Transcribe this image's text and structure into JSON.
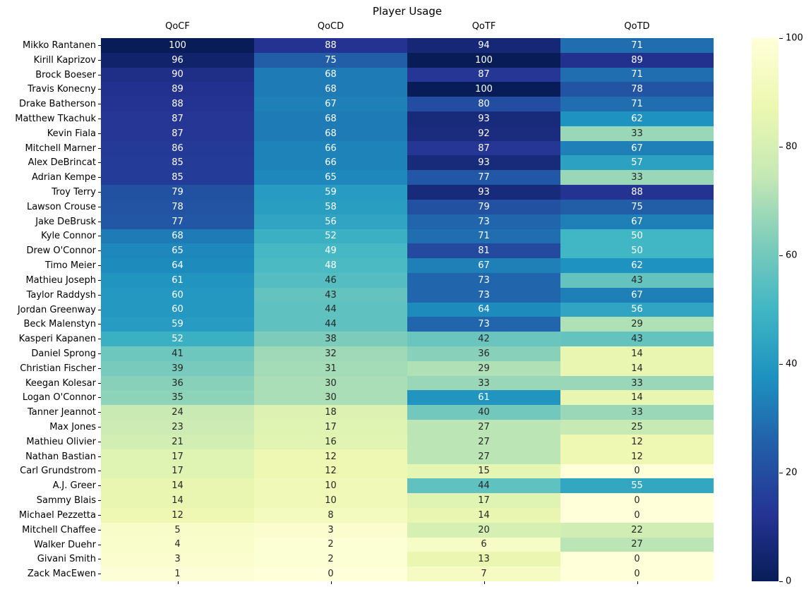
{
  "chart_data": {
    "type": "heatmap",
    "title": "Player Usage",
    "columns": [
      "QoCF",
      "QoCD",
      "QoTF",
      "QoTD"
    ],
    "rows": [
      {
        "name": "Mikko Rantanen",
        "values": [
          100,
          88,
          94,
          71
        ]
      },
      {
        "name": "Kirill Kaprizov",
        "values": [
          96,
          75,
          100,
          89
        ]
      },
      {
        "name": "Brock Boeser",
        "values": [
          90,
          68,
          87,
          71
        ]
      },
      {
        "name": "Travis Konecny",
        "values": [
          89,
          68,
          100,
          78
        ]
      },
      {
        "name": "Drake Batherson",
        "values": [
          88,
          67,
          80,
          71
        ]
      },
      {
        "name": "Matthew Tkachuk",
        "values": [
          87,
          68,
          93,
          62
        ]
      },
      {
        "name": "Kevin Fiala",
        "values": [
          87,
          68,
          92,
          33
        ]
      },
      {
        "name": "Mitchell Marner",
        "values": [
          86,
          66,
          87,
          67
        ]
      },
      {
        "name": "Alex DeBrincat",
        "values": [
          85,
          66,
          93,
          57
        ]
      },
      {
        "name": "Adrian Kempe",
        "values": [
          85,
          65,
          77,
          33
        ]
      },
      {
        "name": "Troy Terry",
        "values": [
          79,
          59,
          93,
          88
        ]
      },
      {
        "name": "Lawson Crouse",
        "values": [
          78,
          58,
          79,
          75
        ]
      },
      {
        "name": "Jake DeBrusk",
        "values": [
          77,
          56,
          73,
          67
        ]
      },
      {
        "name": "Kyle Connor",
        "values": [
          68,
          52,
          71,
          50
        ]
      },
      {
        "name": "Drew O'Connor",
        "values": [
          65,
          49,
          81,
          50
        ]
      },
      {
        "name": "Timo Meier",
        "values": [
          64,
          48,
          67,
          62
        ]
      },
      {
        "name": "Mathieu Joseph",
        "values": [
          61,
          46,
          73,
          43
        ]
      },
      {
        "name": "Taylor Raddysh",
        "values": [
          60,
          43,
          73,
          67
        ]
      },
      {
        "name": "Jordan Greenway",
        "values": [
          60,
          44,
          64,
          56
        ]
      },
      {
        "name": "Beck Malenstyn",
        "values": [
          59,
          44,
          73,
          29
        ]
      },
      {
        "name": "Kasperi Kapanen",
        "values": [
          52,
          38,
          42,
          43
        ]
      },
      {
        "name": "Daniel Sprong",
        "values": [
          41,
          32,
          36,
          14
        ]
      },
      {
        "name": "Christian Fischer",
        "values": [
          39,
          31,
          29,
          14
        ]
      },
      {
        "name": "Keegan Kolesar",
        "values": [
          36,
          30,
          33,
          33
        ]
      },
      {
        "name": "Logan O'Connor",
        "values": [
          35,
          30,
          61,
          14
        ]
      },
      {
        "name": "Tanner Jeannot",
        "values": [
          24,
          18,
          40,
          33
        ]
      },
      {
        "name": "Max Jones",
        "values": [
          23,
          17,
          27,
          25
        ]
      },
      {
        "name": "Mathieu Olivier",
        "values": [
          21,
          16,
          27,
          12
        ]
      },
      {
        "name": "Nathan Bastian",
        "values": [
          17,
          12,
          27,
          12
        ]
      },
      {
        "name": "Carl Grundstrom",
        "values": [
          17,
          12,
          15,
          0
        ]
      },
      {
        "name": "A.J. Greer",
        "values": [
          14,
          10,
          44,
          55
        ]
      },
      {
        "name": "Sammy Blais",
        "values": [
          14,
          10,
          17,
          0
        ]
      },
      {
        "name": "Michael Pezzetta",
        "values": [
          12,
          8,
          14,
          0
        ]
      },
      {
        "name": "Mitchell Chaffee",
        "values": [
          5,
          3,
          20,
          22
        ]
      },
      {
        "name": "Walker Duehr",
        "values": [
          4,
          2,
          6,
          27
        ]
      },
      {
        "name": "Givani Smith",
        "values": [
          3,
          2,
          13,
          0
        ]
      },
      {
        "name": "Zack MacEwen",
        "values": [
          1,
          0,
          7,
          0
        ]
      }
    ],
    "value_range": [
      0,
      100
    ],
    "colorbar_ticks": [
      100,
      80,
      60,
      40,
      20,
      0
    ],
    "colorbar_position": "right",
    "grid": false,
    "colormap": "YlGnBu",
    "colormap_anchors": [
      "#ffffd9",
      "#edf8b1",
      "#c7e9b4",
      "#7fcdbb",
      "#41b6c4",
      "#1d91c0",
      "#225ea8",
      "#253494",
      "#081d58"
    ],
    "annotation_text_colors": {
      "light": "#ffffff",
      "dark": "#262626"
    }
  }
}
